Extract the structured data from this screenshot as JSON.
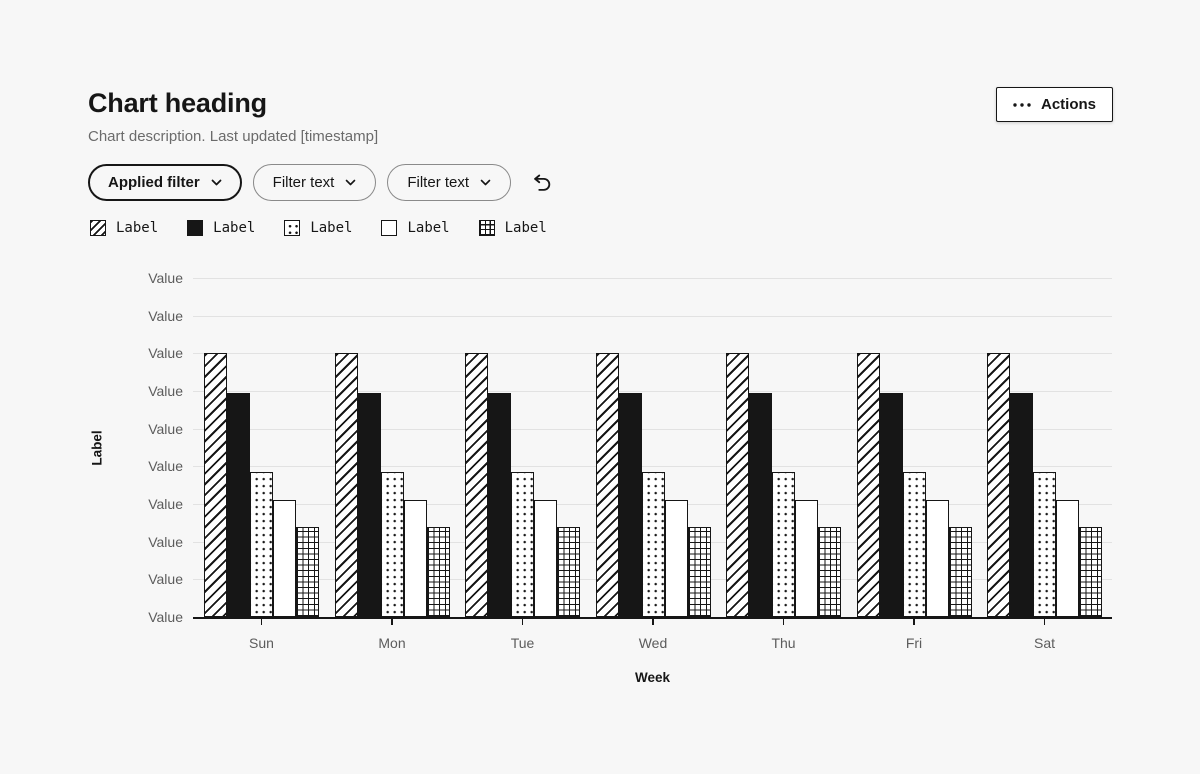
{
  "page": {
    "title": "Chart heading",
    "description": "Chart description. Last updated [timestamp]",
    "actions_label": "Actions"
  },
  "filters": {
    "applied": {
      "label": "Applied filter"
    },
    "others": [
      {
        "label": "Filter text"
      },
      {
        "label": "Filter text"
      }
    ]
  },
  "colors": {
    "ink": "#161616",
    "grid_line": "#e2e2e2",
    "tick_text": "#5c5c5c",
    "background": "#f7f7f7",
    "bar_fill": "#ffffff"
  },
  "chart_data": {
    "type": "bar",
    "title": "",
    "xlabel": "Week",
    "ylabel": "Label",
    "categories": [
      "Sun",
      "Mon",
      "Tue",
      "Wed",
      "Thu",
      "Fri",
      "Sat"
    ],
    "y_ticks": [
      "Value",
      "Value",
      "Value",
      "Value",
      "Value",
      "Value",
      "Value",
      "Value",
      "Value",
      "Value"
    ],
    "ylim": [
      0,
      9
    ],
    "grid": true,
    "legend_position": "top-left",
    "series": [
      {
        "name": "Label",
        "pattern": "diagonal-stripe",
        "values": [
          7,
          7,
          7,
          7,
          7,
          7,
          7
        ]
      },
      {
        "name": "Label",
        "pattern": "solid",
        "values": [
          5.95,
          5.95,
          5.95,
          5.95,
          5.95,
          5.95,
          5.95
        ]
      },
      {
        "name": "Label",
        "pattern": "dots",
        "values": [
          3.85,
          3.85,
          3.85,
          3.85,
          3.85,
          3.85,
          3.85
        ]
      },
      {
        "name": "Label",
        "pattern": "plain",
        "values": [
          3.1,
          3.1,
          3.1,
          3.1,
          3.1,
          3.1,
          3.1
        ]
      },
      {
        "name": "Label",
        "pattern": "grid",
        "values": [
          2.4,
          2.4,
          2.4,
          2.4,
          2.4,
          2.4,
          2.4
        ]
      }
    ]
  }
}
